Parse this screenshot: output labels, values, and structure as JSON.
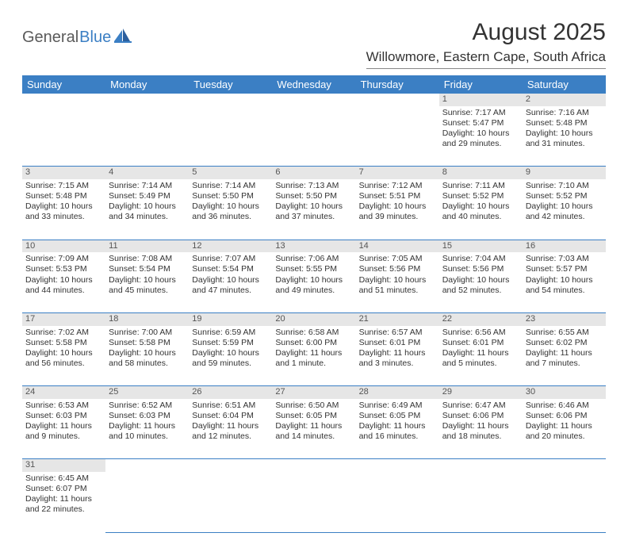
{
  "logo": {
    "part1": "General",
    "part2": "Blue"
  },
  "title": "August 2025",
  "location": "Willowmore, Eastern Cape, South Africa",
  "colors": {
    "header_bg": "#3b7fc4",
    "header_text": "#ffffff",
    "daynum_bg": "#e6e6e6",
    "cell_border": "#3b7fc4",
    "text": "#333333",
    "logo_gray": "#5a5a5a",
    "logo_blue": "#3b7fc4"
  },
  "weekdays": [
    "Sunday",
    "Monday",
    "Tuesday",
    "Wednesday",
    "Thursday",
    "Friday",
    "Saturday"
  ],
  "weeks": [
    [
      null,
      null,
      null,
      null,
      null,
      {
        "d": "1",
        "sr": "Sunrise: 7:17 AM",
        "ss": "Sunset: 5:47 PM",
        "dl1": "Daylight: 10 hours",
        "dl2": "and 29 minutes."
      },
      {
        "d": "2",
        "sr": "Sunrise: 7:16 AM",
        "ss": "Sunset: 5:48 PM",
        "dl1": "Daylight: 10 hours",
        "dl2": "and 31 minutes."
      }
    ],
    [
      {
        "d": "3",
        "sr": "Sunrise: 7:15 AM",
        "ss": "Sunset: 5:48 PM",
        "dl1": "Daylight: 10 hours",
        "dl2": "and 33 minutes."
      },
      {
        "d": "4",
        "sr": "Sunrise: 7:14 AM",
        "ss": "Sunset: 5:49 PM",
        "dl1": "Daylight: 10 hours",
        "dl2": "and 34 minutes."
      },
      {
        "d": "5",
        "sr": "Sunrise: 7:14 AM",
        "ss": "Sunset: 5:50 PM",
        "dl1": "Daylight: 10 hours",
        "dl2": "and 36 minutes."
      },
      {
        "d": "6",
        "sr": "Sunrise: 7:13 AM",
        "ss": "Sunset: 5:50 PM",
        "dl1": "Daylight: 10 hours",
        "dl2": "and 37 minutes."
      },
      {
        "d": "7",
        "sr": "Sunrise: 7:12 AM",
        "ss": "Sunset: 5:51 PM",
        "dl1": "Daylight: 10 hours",
        "dl2": "and 39 minutes."
      },
      {
        "d": "8",
        "sr": "Sunrise: 7:11 AM",
        "ss": "Sunset: 5:52 PM",
        "dl1": "Daylight: 10 hours",
        "dl2": "and 40 minutes."
      },
      {
        "d": "9",
        "sr": "Sunrise: 7:10 AM",
        "ss": "Sunset: 5:52 PM",
        "dl1": "Daylight: 10 hours",
        "dl2": "and 42 minutes."
      }
    ],
    [
      {
        "d": "10",
        "sr": "Sunrise: 7:09 AM",
        "ss": "Sunset: 5:53 PM",
        "dl1": "Daylight: 10 hours",
        "dl2": "and 44 minutes."
      },
      {
        "d": "11",
        "sr": "Sunrise: 7:08 AM",
        "ss": "Sunset: 5:54 PM",
        "dl1": "Daylight: 10 hours",
        "dl2": "and 45 minutes."
      },
      {
        "d": "12",
        "sr": "Sunrise: 7:07 AM",
        "ss": "Sunset: 5:54 PM",
        "dl1": "Daylight: 10 hours",
        "dl2": "and 47 minutes."
      },
      {
        "d": "13",
        "sr": "Sunrise: 7:06 AM",
        "ss": "Sunset: 5:55 PM",
        "dl1": "Daylight: 10 hours",
        "dl2": "and 49 minutes."
      },
      {
        "d": "14",
        "sr": "Sunrise: 7:05 AM",
        "ss": "Sunset: 5:56 PM",
        "dl1": "Daylight: 10 hours",
        "dl2": "and 51 minutes."
      },
      {
        "d": "15",
        "sr": "Sunrise: 7:04 AM",
        "ss": "Sunset: 5:56 PM",
        "dl1": "Daylight: 10 hours",
        "dl2": "and 52 minutes."
      },
      {
        "d": "16",
        "sr": "Sunrise: 7:03 AM",
        "ss": "Sunset: 5:57 PM",
        "dl1": "Daylight: 10 hours",
        "dl2": "and 54 minutes."
      }
    ],
    [
      {
        "d": "17",
        "sr": "Sunrise: 7:02 AM",
        "ss": "Sunset: 5:58 PM",
        "dl1": "Daylight: 10 hours",
        "dl2": "and 56 minutes."
      },
      {
        "d": "18",
        "sr": "Sunrise: 7:00 AM",
        "ss": "Sunset: 5:58 PM",
        "dl1": "Daylight: 10 hours",
        "dl2": "and 58 minutes."
      },
      {
        "d": "19",
        "sr": "Sunrise: 6:59 AM",
        "ss": "Sunset: 5:59 PM",
        "dl1": "Daylight: 10 hours",
        "dl2": "and 59 minutes."
      },
      {
        "d": "20",
        "sr": "Sunrise: 6:58 AM",
        "ss": "Sunset: 6:00 PM",
        "dl1": "Daylight: 11 hours",
        "dl2": "and 1 minute."
      },
      {
        "d": "21",
        "sr": "Sunrise: 6:57 AM",
        "ss": "Sunset: 6:01 PM",
        "dl1": "Daylight: 11 hours",
        "dl2": "and 3 minutes."
      },
      {
        "d": "22",
        "sr": "Sunrise: 6:56 AM",
        "ss": "Sunset: 6:01 PM",
        "dl1": "Daylight: 11 hours",
        "dl2": "and 5 minutes."
      },
      {
        "d": "23",
        "sr": "Sunrise: 6:55 AM",
        "ss": "Sunset: 6:02 PM",
        "dl1": "Daylight: 11 hours",
        "dl2": "and 7 minutes."
      }
    ],
    [
      {
        "d": "24",
        "sr": "Sunrise: 6:53 AM",
        "ss": "Sunset: 6:03 PM",
        "dl1": "Daylight: 11 hours",
        "dl2": "and 9 minutes."
      },
      {
        "d": "25",
        "sr": "Sunrise: 6:52 AM",
        "ss": "Sunset: 6:03 PM",
        "dl1": "Daylight: 11 hours",
        "dl2": "and 10 minutes."
      },
      {
        "d": "26",
        "sr": "Sunrise: 6:51 AM",
        "ss": "Sunset: 6:04 PM",
        "dl1": "Daylight: 11 hours",
        "dl2": "and 12 minutes."
      },
      {
        "d": "27",
        "sr": "Sunrise: 6:50 AM",
        "ss": "Sunset: 6:05 PM",
        "dl1": "Daylight: 11 hours",
        "dl2": "and 14 minutes."
      },
      {
        "d": "28",
        "sr": "Sunrise: 6:49 AM",
        "ss": "Sunset: 6:05 PM",
        "dl1": "Daylight: 11 hours",
        "dl2": "and 16 minutes."
      },
      {
        "d": "29",
        "sr": "Sunrise: 6:47 AM",
        "ss": "Sunset: 6:06 PM",
        "dl1": "Daylight: 11 hours",
        "dl2": "and 18 minutes."
      },
      {
        "d": "30",
        "sr": "Sunrise: 6:46 AM",
        "ss": "Sunset: 6:06 PM",
        "dl1": "Daylight: 11 hours",
        "dl2": "and 20 minutes."
      }
    ],
    [
      {
        "d": "31",
        "sr": "Sunrise: 6:45 AM",
        "ss": "Sunset: 6:07 PM",
        "dl1": "Daylight: 11 hours",
        "dl2": "and 22 minutes."
      },
      null,
      null,
      null,
      null,
      null,
      null
    ]
  ]
}
